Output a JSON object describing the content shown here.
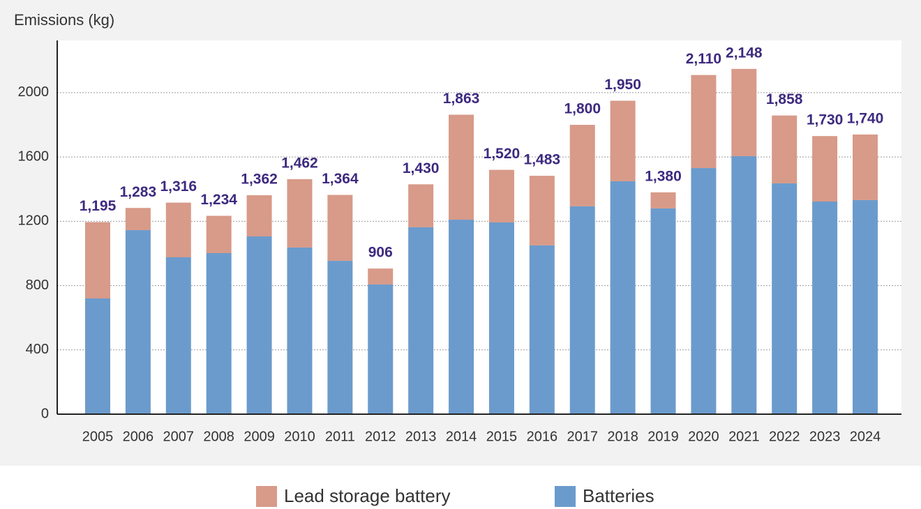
{
  "chart_data": {
    "type": "stacked-bar",
    "y_label": "Emissions (kg)",
    "categories": [
      "2005",
      "2006",
      "2007",
      "2008",
      "2009",
      "2010",
      "2011",
      "2012",
      "2013",
      "2014",
      "2015",
      "2016",
      "2017",
      "2018",
      "2019",
      "2020",
      "2021",
      "2022",
      "2023",
      "2024"
    ],
    "series": [
      {
        "name": "Batteries",
        "color": "#6b9bcc",
        "values": [
          720,
          1145,
          976,
          1002,
          1106,
          1037,
          954,
          807,
          1163,
          1210,
          1193,
          1050,
          1293,
          1449,
          1280,
          1531,
          1605,
          1436,
          1323,
          1332
        ]
      },
      {
        "name": "Lead storage battery",
        "color": "#d89a89",
        "values": [
          475,
          138,
          340,
          232,
          256,
          425,
          410,
          99,
          267,
          653,
          327,
          433,
          507,
          501,
          100,
          579,
          543,
          422,
          407,
          408
        ]
      }
    ],
    "totals": [
      1195,
      1283,
      1316,
      1234,
      1362,
      1462,
      1364,
      906,
      1430,
      1863,
      1520,
      1483,
      1800,
      1950,
      1380,
      2110,
      2148,
      1858,
      1730,
      1740
    ],
    "total_labels": [
      "1,195",
      "1,283",
      "1,316",
      "1,234",
      "1,362",
      "1,462",
      "1,364",
      "906",
      "1,430",
      "1,863",
      "1,520",
      "1,483",
      "1,800",
      "1,950",
      "1,380",
      "2,110",
      "2,148",
      "1,858",
      "1,730",
      "1,740"
    ],
    "ylim": [
      0,
      2325
    ],
    "yticks": [
      0,
      400,
      800,
      1200,
      1600,
      2000
    ],
    "grid": true
  }
}
